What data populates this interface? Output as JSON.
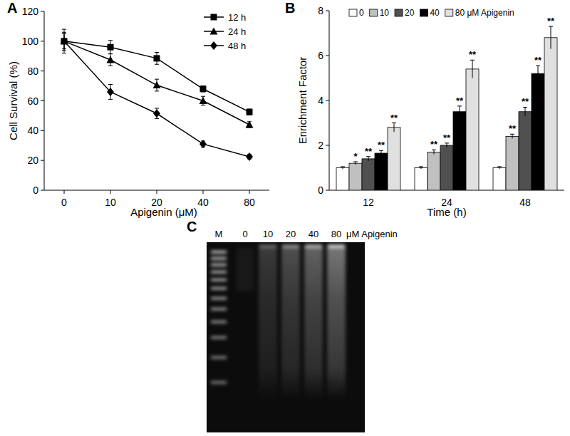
{
  "chart_data": [
    {
      "type": "line",
      "title": "A",
      "x_label": "Apigenin (μM)",
      "y_label": "Cell Survival (%)",
      "categories": [
        "0",
        "10",
        "20",
        "40",
        "80"
      ],
      "ylim": [
        0,
        120
      ],
      "yticks": [
        0,
        20,
        40,
        60,
        80,
        100,
        120
      ],
      "grid": false,
      "legend": "top-right",
      "series": [
        {
          "name": "12 h",
          "color": "#000000",
          "marker": "square",
          "values": [
            100,
            96,
            88.5,
            68,
            52.5
          ],
          "errors": [
            5,
            4.5,
            4,
            2,
            2
          ]
        },
        {
          "name": "24 h",
          "color": "#000000",
          "marker": "triangle",
          "values": [
            100,
            87.5,
            70.5,
            60,
            44
          ],
          "errors": [
            6,
            4,
            4,
            3,
            2
          ]
        },
        {
          "name": "48 h",
          "color": "#000000",
          "marker": "diamond",
          "values": [
            100,
            66,
            51.5,
            31,
            22.5
          ],
          "errors": [
            8,
            5,
            3.5,
            2,
            1.5
          ]
        }
      ]
    },
    {
      "type": "bar",
      "title": "B",
      "x_label": "Time (h)",
      "y_label": "Enrichment Factor",
      "categories": [
        "12",
        "24",
        "48"
      ],
      "ylim": [
        0,
        8
      ],
      "yticks": [
        0,
        2,
        4,
        6,
        8
      ],
      "grid": false,
      "legend": "top",
      "series": [
        {
          "name": "0",
          "color": "#ffffff",
          "values": [
            1,
            1,
            1
          ],
          "errors": [
            0.05,
            0.05,
            0.05
          ],
          "stars": [
            null,
            null,
            null
          ]
        },
        {
          "name": "10",
          "color": "#c0c0c0",
          "values": [
            1.2,
            1.7,
            2.4
          ],
          "errors": [
            0.07,
            0.1,
            0.1
          ],
          "stars": [
            "*",
            "**",
            "**"
          ]
        },
        {
          "name": "20",
          "color": "#505050",
          "values": [
            1.4,
            2.0,
            3.5
          ],
          "errors": [
            0.1,
            0.1,
            0.2
          ],
          "stars": [
            "**",
            "**",
            "**"
          ]
        },
        {
          "name": "40",
          "color": "#000000",
          "values": [
            1.65,
            3.5,
            5.2
          ],
          "errors": [
            0.12,
            0.25,
            0.35
          ],
          "stars": [
            "**",
            "**",
            "**"
          ]
        },
        {
          "name": "80 μM Apigenin",
          "color": "#e0e0e0",
          "values": [
            2.8,
            5.4,
            6.8
          ],
          "errors": [
            0.2,
            0.4,
            0.5
          ],
          "stars": [
            "**",
            "**",
            "**"
          ]
        }
      ]
    },
    {
      "type": "gel",
      "title": "C",
      "lanes": [
        "M",
        "0",
        "10",
        "20",
        "40",
        "80"
      ],
      "unit_label": "μM Apigenin"
    }
  ]
}
